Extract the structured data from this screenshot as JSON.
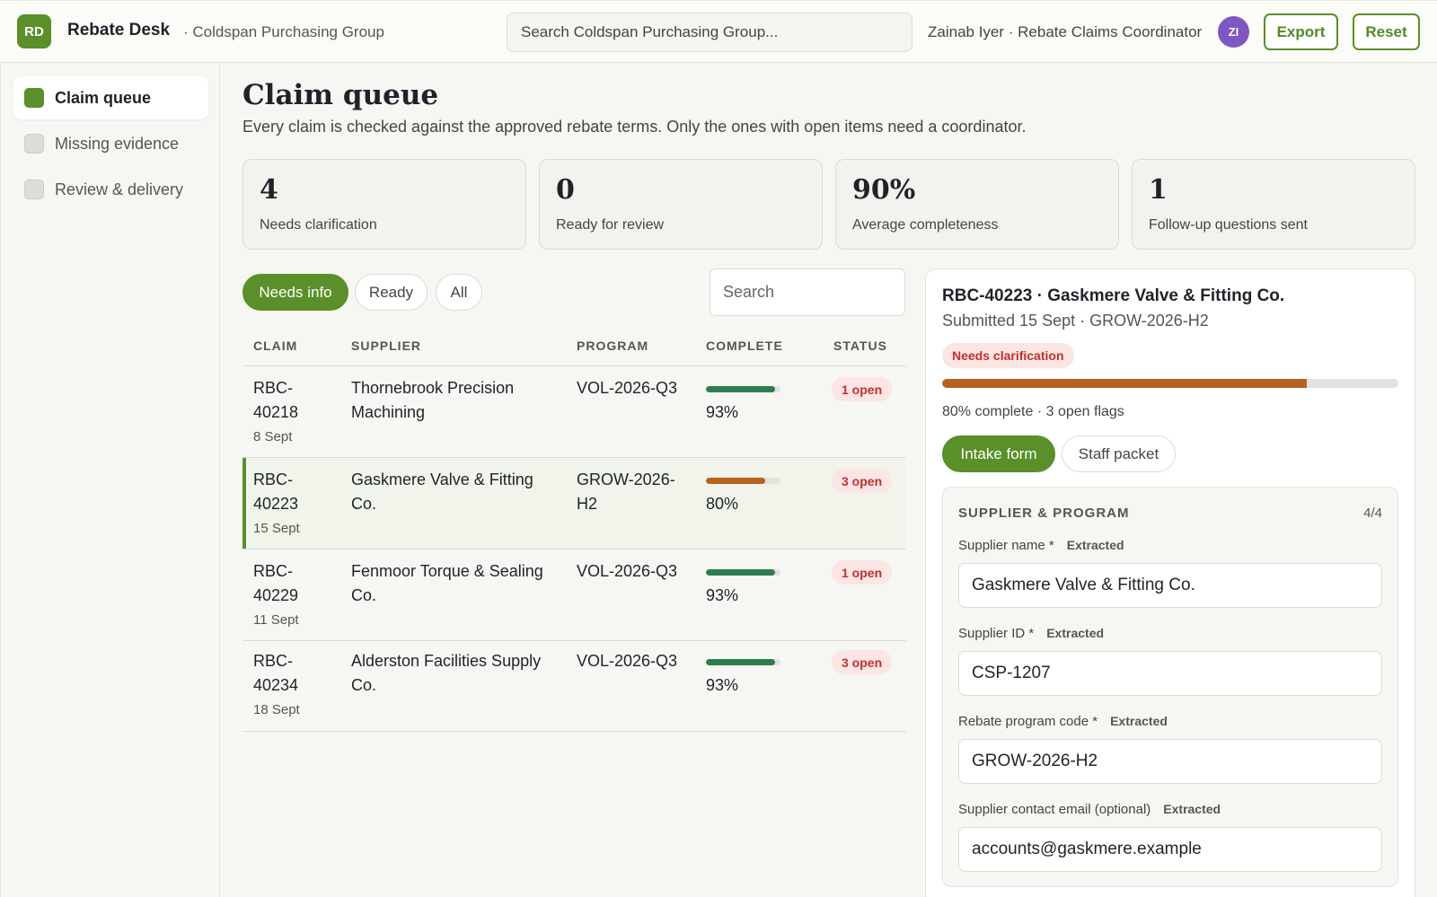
{
  "topbar": {
    "logo_initials": "RD",
    "app_name": "Rebate Desk",
    "org_name": "· Coldspan Purchasing Group",
    "search_placeholder": "Search Coldspan Purchasing Group...",
    "user": "Zainab Iyer · Rebate Claims Coordinator",
    "avatar_initials": "ZI",
    "export_label": "Export",
    "reset_label": "Reset"
  },
  "sidebar": {
    "items": [
      {
        "label": "Claim queue",
        "active": true
      },
      {
        "label": "Missing evidence",
        "active": false
      },
      {
        "label": "Review & delivery",
        "active": false
      }
    ]
  },
  "main": {
    "title": "Claim queue",
    "subtitle": "Every claim is checked against the approved rebate terms. Only the ones with open items need a coordinator.",
    "stats": [
      {
        "value": "4",
        "label": "Needs clarification"
      },
      {
        "value": "0",
        "label": "Ready for review"
      },
      {
        "value": "90%",
        "label": "Average completeness"
      },
      {
        "value": "1",
        "label": "Follow-up questions sent"
      }
    ],
    "filters": [
      "Needs info",
      "Ready",
      "All"
    ],
    "search_placeholder": "Search",
    "columns": [
      "CLAIM",
      "SUPPLIER",
      "PROGRAM",
      "COMPLETE",
      "STATUS"
    ],
    "rows": [
      {
        "claim_a": "RBC-",
        "claim_b": "40218",
        "date": "8 Sept",
        "supplier_a": "Thornebrook Precision",
        "supplier_b": "Machining",
        "program_a": "VOL-2026-Q3",
        "program_b": "",
        "complete": "93%",
        "fraction": 0.93,
        "status": "1 open",
        "selected": false
      },
      {
        "claim_a": "RBC-",
        "claim_b": "40223",
        "date": "15 Sept",
        "supplier_a": "Gaskmere Valve & Fitting",
        "supplier_b": "Co.",
        "program_a": "GROW-2026-",
        "program_b": "H2",
        "complete": "80%",
        "fraction": 0.8,
        "status": "3 open",
        "selected": true
      },
      {
        "claim_a": "RBC-",
        "claim_b": "40229",
        "date": "11 Sept",
        "supplier_a": "Fenmoor Torque & Sealing",
        "supplier_b": "Co.",
        "program_a": "VOL-2026-Q3",
        "program_b": "",
        "complete": "93%",
        "fraction": 0.93,
        "status": "1 open",
        "selected": false
      },
      {
        "claim_a": "RBC-",
        "claim_b": "40234",
        "date": "18 Sept",
        "supplier_a": "Alderston Facilities Supply",
        "supplier_b": "Co.",
        "program_a": "VOL-2026-Q3",
        "program_b": "",
        "complete": "93%",
        "fraction": 0.93,
        "status": "3 open",
        "selected": false
      }
    ]
  },
  "detail": {
    "title": "RBC-40223 · Gaskmere Valve & Fitting Co.",
    "subtitle": "Submitted 15 Sept · GROW-2026-H2",
    "badge": "Needs clarification",
    "completeness": 0.8,
    "progress_text": "80% complete · 3 open flags",
    "tabs": [
      "Intake form",
      "Staff packet"
    ],
    "section_title": "SUPPLIER & PROGRAM",
    "section_count": "4/4",
    "fields": [
      {
        "label": "Supplier name *",
        "tag": "Extracted",
        "value": "Gaskmere Valve & Fitting Co."
      },
      {
        "label": "Supplier ID *",
        "tag": "Extracted",
        "value": "CSP-1207"
      },
      {
        "label": "Rebate program code *",
        "tag": "Extracted",
        "value": "GROW-2026-H2"
      },
      {
        "label": "Supplier contact email (optional)",
        "tag": "Extracted",
        "value": "accounts@gaskmere.example"
      }
    ]
  },
  "colors": {
    "accent": "#5a8f2a",
    "bar_green": "#2f7d4f",
    "bar_orange": "#b8621f",
    "status_red": "#c0312b"
  }
}
